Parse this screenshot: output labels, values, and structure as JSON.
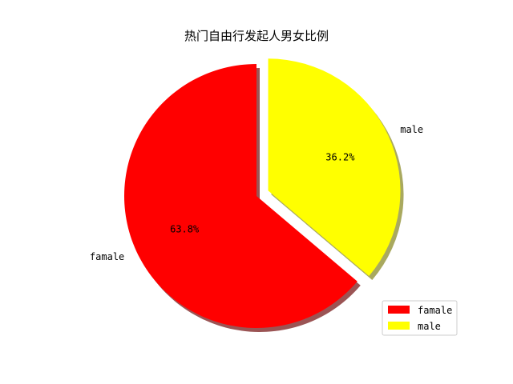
{
  "chart_data": {
    "type": "pie",
    "title": "热门自由行发起人男女比例",
    "slices": [
      {
        "label": "famale",
        "value": 63.8,
        "pct_label": "63.8%",
        "color": "#ff0000",
        "exploded": false
      },
      {
        "label": "male",
        "value": 36.2,
        "pct_label": "36.2%",
        "color": "#ffff00",
        "exploded": true
      }
    ],
    "shadow": true,
    "legend": {
      "placement": "lower-right",
      "entries": [
        "famale",
        "male"
      ]
    }
  }
}
